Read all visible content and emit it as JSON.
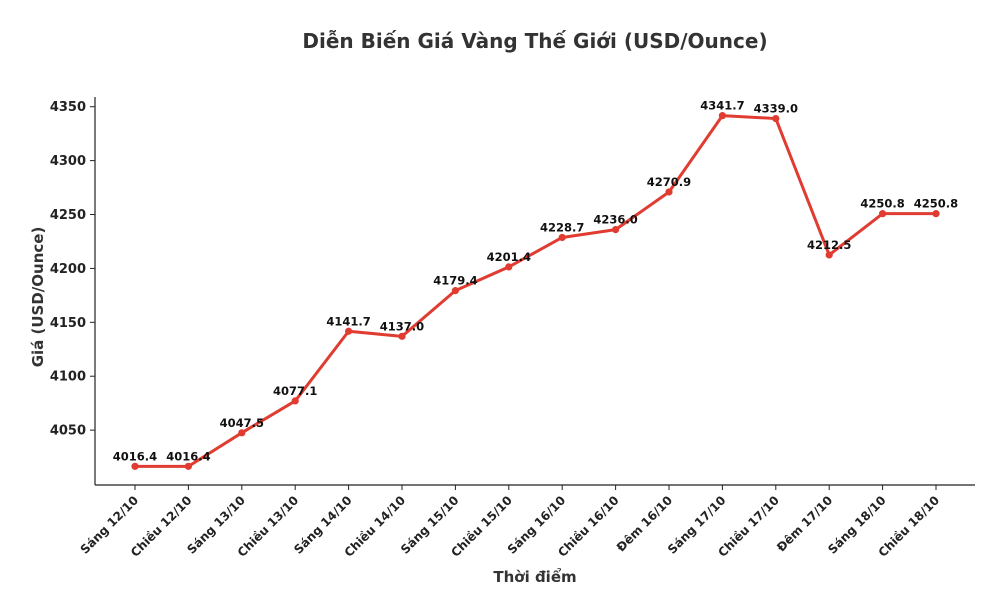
{
  "chart_data": {
    "type": "line",
    "title": "Diễn Biến Giá Vàng Thế Giới (USD/Ounce)",
    "xlabel": "Thời điểm",
    "ylabel": "Giá (USD/Ounce)",
    "categories": [
      "Sáng 12/10",
      "Chiều 12/10",
      "Sáng 13/10",
      "Chiều 13/10",
      "Sáng 14/10",
      "Chiều 14/10",
      "Sáng 15/10",
      "Chiều 15/10",
      "Sáng 16/10",
      "Chiều 16/10",
      "Đêm 16/10",
      "Sáng 17/10",
      "Chiều 17/10",
      "Đêm 17/10",
      "Sáng 18/10",
      "Chiều 18/10"
    ],
    "values": [
      4016.4,
      4016.4,
      4047.5,
      4077.1,
      4141.7,
      4137.0,
      4179.4,
      4201.4,
      4228.7,
      4236.0,
      4270.9,
      4341.7,
      4339.0,
      4212.5,
      4250.8,
      4250.8
    ],
    "data_labels": [
      "4016.4",
      "4016.4",
      "4047.5",
      "4077.1",
      "4141.7",
      "4137.0",
      "4179.4",
      "4201.4",
      "4228.7",
      "4236.0",
      "4270.9",
      "4341.7",
      "4339.0",
      "4212.5",
      "4250.8",
      "4250.8"
    ],
    "yticks": [
      4050,
      4100,
      4150,
      4200,
      4250,
      4300,
      4350
    ],
    "ylim": [
      3999.1,
      4359.0
    ],
    "grid": false,
    "color": "#e03c31"
  }
}
